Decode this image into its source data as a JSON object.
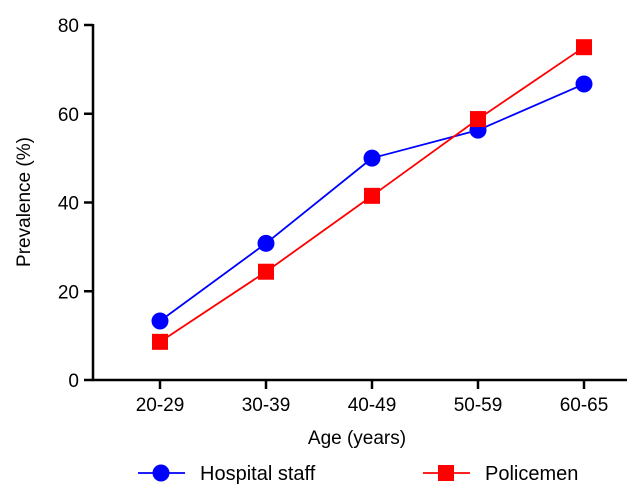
{
  "chart_data": {
    "type": "line",
    "xlabel": "Age (years)",
    "ylabel": "Prevalence (%)",
    "categories": [
      "20-29",
      "30-39",
      "40-49",
      "50-59",
      "60-65"
    ],
    "ylim": [
      0,
      80
    ],
    "yticks": [
      "0",
      "20",
      "40",
      "60",
      "80"
    ],
    "series": [
      {
        "name": "Hospital staff",
        "color": "#0000ff",
        "marker": "circle",
        "values": [
          13.3,
          30.8,
          50.0,
          56.3,
          66.7
        ]
      },
      {
        "name": "Policemen",
        "color": "#ff0000",
        "marker": "square",
        "values": [
          8.6,
          24.4,
          41.5,
          58.8,
          75.0
        ]
      }
    ],
    "legend_position": "bottom",
    "grid": false
  }
}
